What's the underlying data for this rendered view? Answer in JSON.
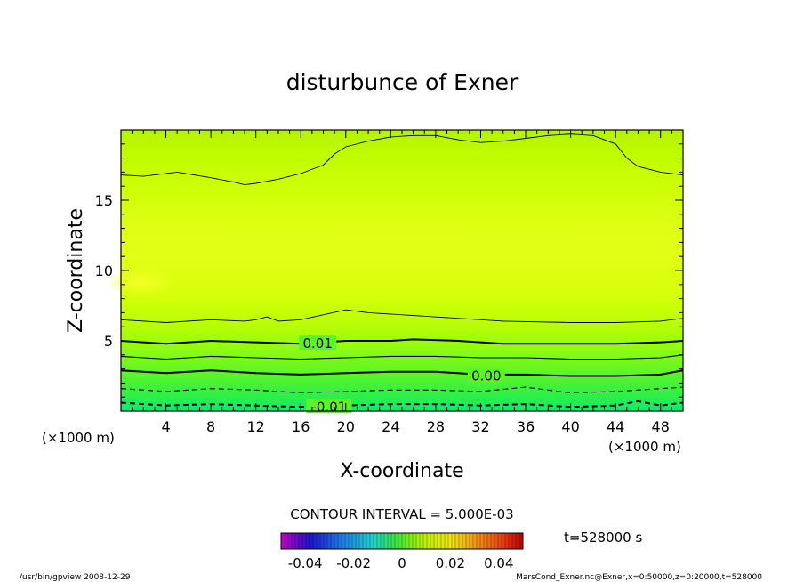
{
  "chart_data": {
    "type": "heatmap",
    "title": "disturbunce of Exner",
    "xlabel": "X-coordinate",
    "ylabel": "Z-coordinate",
    "x_unit": "(×1000 m)",
    "y_unit": "(×1000 m)",
    "xlim": [
      0,
      50
    ],
    "ylim": [
      0,
      20
    ],
    "x_ticks": [
      "4",
      "8",
      "12",
      "16",
      "20",
      "24",
      "28",
      "32",
      "36",
      "40",
      "44",
      "48"
    ],
    "y_ticks": [
      "5",
      "10",
      "15"
    ],
    "contour_interval_text": "CONTOUR INTERVAL = 5.000E-03",
    "contour_labels": [
      {
        "text": "0.01",
        "x": 17.5,
        "z": 4.8
      },
      {
        "text": "0.00",
        "x": 32.5,
        "z": 2.5
      },
      {
        "text": "-0.01",
        "x": 18.5,
        "z": 0.3
      }
    ],
    "contours": [
      {
        "level": 0.01,
        "style": "solid-bold",
        "points": [
          [
            0,
            5.0
          ],
          [
            4,
            4.8
          ],
          [
            8,
            5.0
          ],
          [
            12,
            4.9
          ],
          [
            16,
            4.8
          ],
          [
            20,
            5.0
          ],
          [
            24,
            5.0
          ],
          [
            26,
            5.1
          ],
          [
            30,
            5.0
          ],
          [
            34,
            4.8
          ],
          [
            40,
            4.8
          ],
          [
            44,
            4.8
          ],
          [
            48,
            4.9
          ],
          [
            50,
            5.0
          ]
        ]
      },
      {
        "level": 0.005,
        "style": "solid",
        "points": [
          [
            0,
            3.9
          ],
          [
            4,
            3.7
          ],
          [
            8,
            3.9
          ],
          [
            12,
            3.8
          ],
          [
            16,
            3.7
          ],
          [
            20,
            3.8
          ],
          [
            24,
            3.9
          ],
          [
            28,
            3.9
          ],
          [
            32,
            3.8
          ],
          [
            36,
            3.8
          ],
          [
            40,
            3.7
          ],
          [
            44,
            3.7
          ],
          [
            48,
            3.8
          ],
          [
            50,
            4.0
          ]
        ]
      },
      {
        "level": 0.0,
        "style": "solid-bold",
        "points": [
          [
            0,
            2.9
          ],
          [
            4,
            2.7
          ],
          [
            8,
            2.9
          ],
          [
            12,
            2.7
          ],
          [
            16,
            2.6
          ],
          [
            20,
            2.7
          ],
          [
            24,
            2.8
          ],
          [
            28,
            2.8
          ],
          [
            32,
            2.6
          ],
          [
            36,
            2.6
          ],
          [
            40,
            2.5
          ],
          [
            44,
            2.5
          ],
          [
            48,
            2.6
          ],
          [
            50,
            2.9
          ]
        ]
      },
      {
        "level": -0.005,
        "style": "dashed",
        "points": [
          [
            0,
            1.6
          ],
          [
            4,
            1.4
          ],
          [
            8,
            1.6
          ],
          [
            12,
            1.5
          ],
          [
            16,
            1.3
          ],
          [
            20,
            1.4
          ],
          [
            24,
            1.5
          ],
          [
            28,
            1.5
          ],
          [
            32,
            1.4
          ],
          [
            36,
            1.7
          ],
          [
            40,
            1.3
          ],
          [
            44,
            1.4
          ],
          [
            48,
            1.6
          ],
          [
            50,
            1.7
          ]
        ]
      },
      {
        "level": -0.01,
        "style": "dashed-bold",
        "points": [
          [
            0,
            0.6
          ],
          [
            4,
            0.4
          ],
          [
            8,
            0.5
          ],
          [
            12,
            0.4
          ],
          [
            16,
            0.3
          ],
          [
            20,
            0.4
          ],
          [
            24,
            0.5
          ],
          [
            28,
            0.5
          ],
          [
            32,
            0.4
          ],
          [
            36,
            0.5
          ],
          [
            40,
            0.3
          ],
          [
            44,
            0.4
          ],
          [
            46,
            0.7
          ],
          [
            48,
            0.4
          ],
          [
            50,
            0.6
          ]
        ]
      },
      {
        "level": 0.015,
        "style": "solid-thin",
        "points": [
          [
            0,
            6.5
          ],
          [
            4,
            6.3
          ],
          [
            8,
            6.5
          ],
          [
            11,
            6.4
          ],
          [
            12,
            6.5
          ],
          [
            13,
            6.7
          ],
          [
            14,
            6.4
          ],
          [
            16,
            6.5
          ],
          [
            20,
            7.2
          ],
          [
            22,
            7.0
          ],
          [
            26,
            6.8
          ],
          [
            30,
            6.6
          ],
          [
            34,
            6.4
          ],
          [
            40,
            6.3
          ],
          [
            44,
            6.3
          ],
          [
            48,
            6.4
          ],
          [
            50,
            6.6
          ]
        ]
      },
      {
        "level": 0.015,
        "style": "solid-thin",
        "points": [
          [
            0,
            16.8
          ],
          [
            2,
            16.7
          ],
          [
            5,
            17.0
          ],
          [
            8,
            16.6
          ],
          [
            10,
            16.3
          ],
          [
            11,
            16.1
          ],
          [
            12,
            16.2
          ],
          [
            14,
            16.5
          ],
          [
            16,
            16.9
          ],
          [
            18,
            17.5
          ],
          [
            19,
            18.3
          ],
          [
            20,
            18.8
          ],
          [
            22,
            19.2
          ],
          [
            24,
            19.5
          ],
          [
            26,
            19.6
          ],
          [
            28,
            19.6
          ],
          [
            30,
            19.3
          ],
          [
            32,
            19.1
          ],
          [
            34,
            19.2
          ],
          [
            36,
            19.4
          ],
          [
            38,
            19.6
          ],
          [
            40,
            19.7
          ],
          [
            42,
            19.6
          ],
          [
            44,
            19.0
          ],
          [
            45,
            18.0
          ],
          [
            46,
            17.4
          ],
          [
            48,
            17.0
          ],
          [
            50,
            16.8
          ]
        ]
      }
    ],
    "colorbar": {
      "ticks": [
        "-0.04",
        "-0.02",
        "0",
        "0.02",
        "0.04"
      ],
      "range": [
        -0.05,
        0.05
      ]
    },
    "time_text": "t=528000 s",
    "colors": {
      "field_high": "#c8ff00",
      "field_top": "#b8f800",
      "field_peak": "#eaff1e",
      "field_low": "#3cf03c",
      "field_bottom": "#10e87a"
    }
  },
  "footer": {
    "left": "/usr/bin/gpview   2008-12-29",
    "right": "MarsCond_Exner.nc@Exner,x=0:50000,z=0:20000,t=528000"
  }
}
